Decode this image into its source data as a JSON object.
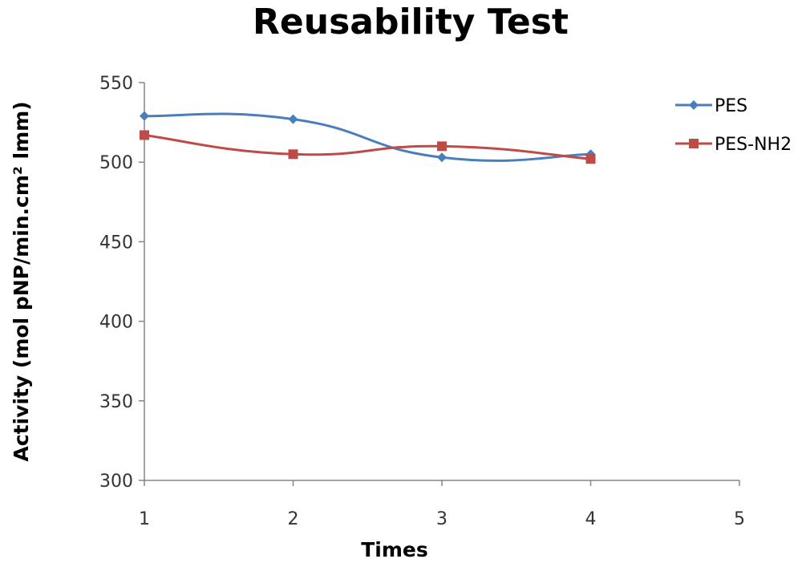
{
  "chart_data": {
    "type": "line",
    "title": "Reusability Test",
    "xlabel": "Times",
    "ylabel": "Activity (mol pNP/min.cm² lmm)",
    "xlim": [
      1,
      5
    ],
    "ylim": [
      300,
      550
    ],
    "x_ticks": [
      "1",
      "2",
      "3",
      "4",
      "5"
    ],
    "y_ticks": [
      "300",
      "350",
      "400",
      "450",
      "500",
      "550"
    ],
    "grid": false,
    "legend_position": "right",
    "series": [
      {
        "name": "PES",
        "x": [
          1,
          2,
          3,
          4
        ],
        "values": [
          529,
          527,
          503,
          505
        ],
        "color": "#4a7ebb",
        "marker": "diamond"
      },
      {
        "name": "PES-NH2",
        "x": [
          1,
          2,
          3,
          4
        ],
        "values": [
          517,
          505,
          510,
          502
        ],
        "color": "#be4b48",
        "marker": "square"
      }
    ]
  }
}
